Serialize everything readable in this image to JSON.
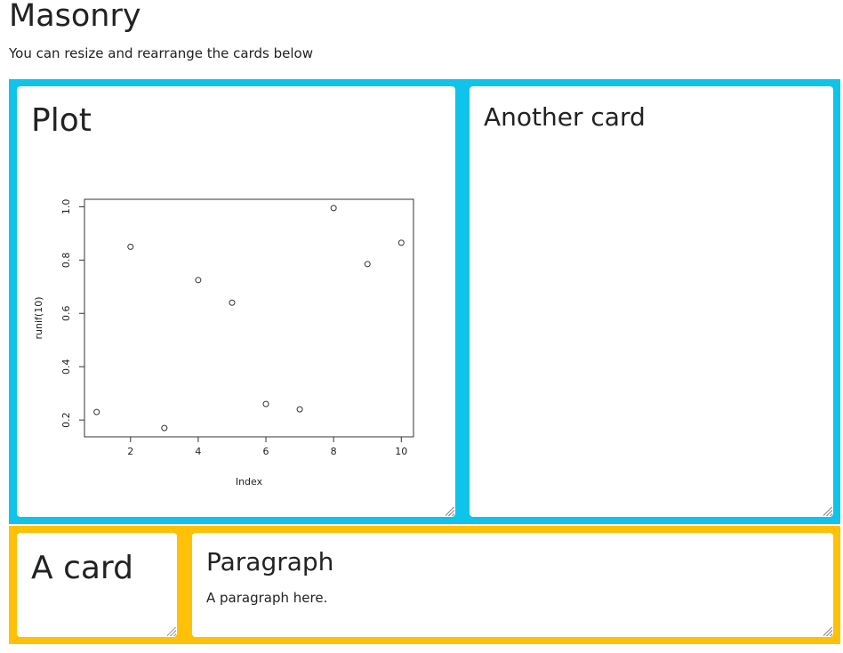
{
  "page": {
    "title": "Masonry",
    "subtitle": "You can resize and rearrange the cards below"
  },
  "colors": {
    "row_top": "#0fc4eb",
    "row_bottom": "#ffc107",
    "card_background": "#ffffff"
  },
  "cards": {
    "plot": {
      "title": "Plot"
    },
    "another": {
      "title": "Another card"
    },
    "a_card": {
      "title": "A card"
    },
    "paragraph": {
      "title": "Paragraph",
      "text": "A paragraph here."
    }
  },
  "chart_data": {
    "type": "scatter",
    "title": "",
    "xlabel": "Index",
    "ylabel": "runif(10)",
    "x": [
      1,
      2,
      3,
      4,
      5,
      6,
      7,
      8,
      9,
      10
    ],
    "y": [
      0.23,
      0.85,
      0.17,
      0.725,
      0.64,
      0.26,
      0.24,
      0.995,
      0.785,
      0.865
    ],
    "xlim": [
      0.64,
      10.36
    ],
    "ylim": [
      0.137,
      1.028
    ],
    "x_ticks": [
      2,
      4,
      6,
      8,
      10
    ],
    "y_ticks": [
      0.2,
      0.4,
      0.6,
      0.8,
      1.0
    ],
    "y_tick_labels": [
      "0.2",
      "0.4",
      "0.6",
      "0.8",
      "1.0"
    ],
    "grid": false,
    "marker": "open-circle"
  }
}
